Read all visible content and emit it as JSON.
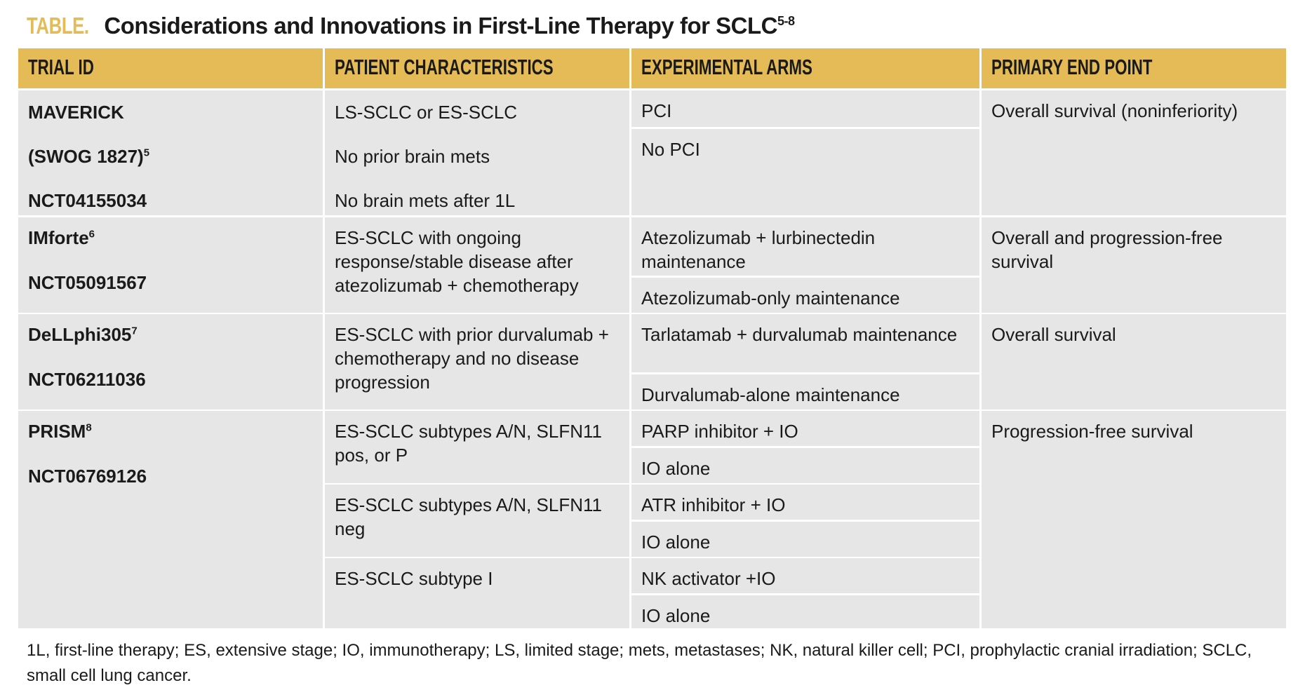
{
  "title": {
    "tag": "TABLE.",
    "text": "Considerations and Innovations in First-Line Therapy for SCLC",
    "sup": "5-8"
  },
  "headers": [
    "TRIAL ID",
    "PATIENT CHARACTERISTICS",
    "EXPERIMENTAL ARMS",
    "PRIMARY END POINT"
  ],
  "rows": [
    {
      "trial": {
        "name": "MAVERICK",
        "alt": "(SWOG 1827)",
        "sup": "5",
        "nct": "NCT04155034"
      },
      "patients": [
        "LS-SCLC or ES-SCLC",
        "No prior brain mets",
        "No brain mets after 1L"
      ],
      "arms": [
        "PCI",
        "No PCI"
      ],
      "endpoint": "Overall survival (noninferiority)"
    },
    {
      "trial": {
        "name": "IMforte",
        "sup": "6",
        "nct": "NCT05091567"
      },
      "patients": [
        "ES-SCLC with ongoing response/stable disease after atezolizumab + chemotherapy"
      ],
      "arms": [
        "Atezolizumab + lurbinectedin maintenance",
        "Atezolizumab-only maintenance"
      ],
      "endpoint": "Overall and progression-free survival"
    },
    {
      "trial": {
        "name": "DeLLphi305",
        "sup": "7",
        "nct": "NCT06211036"
      },
      "patients": [
        "ES-SCLC with prior durvalumab + chemotherapy and no disease progression"
      ],
      "arms": [
        "Tarlatamab + durvalumab maintenance",
        "Durvalumab-alone maintenance"
      ],
      "endpoint": "Overall survival"
    },
    {
      "trial": {
        "name": "PRISM",
        "sup": "8",
        "nct": "NCT06769126"
      },
      "patients": [
        "ES-SCLC subtypes A/N, SLFN11 pos, or P",
        "ES-SCLC subtypes A/N, SLFN11 neg",
        "ES-SCLC subtype I"
      ],
      "arms": [
        "PARP inhibitor + IO",
        "IO alone",
        "ATR inhibitor + IO",
        "IO alone",
        "NK activator +IO",
        "IO alone"
      ],
      "endpoint": "Progression-free survival"
    }
  ],
  "footnote": "1L, first-line therapy; ES, extensive stage; IO, immunotherapy; LS, limited stage; mets, metastases; NK, natural killer cell; PCI, prophylactic cranial irradiation; SCLC, small cell lung cancer.",
  "colors": {
    "header": "#e5bb58",
    "cell": "#e6e6e6"
  }
}
